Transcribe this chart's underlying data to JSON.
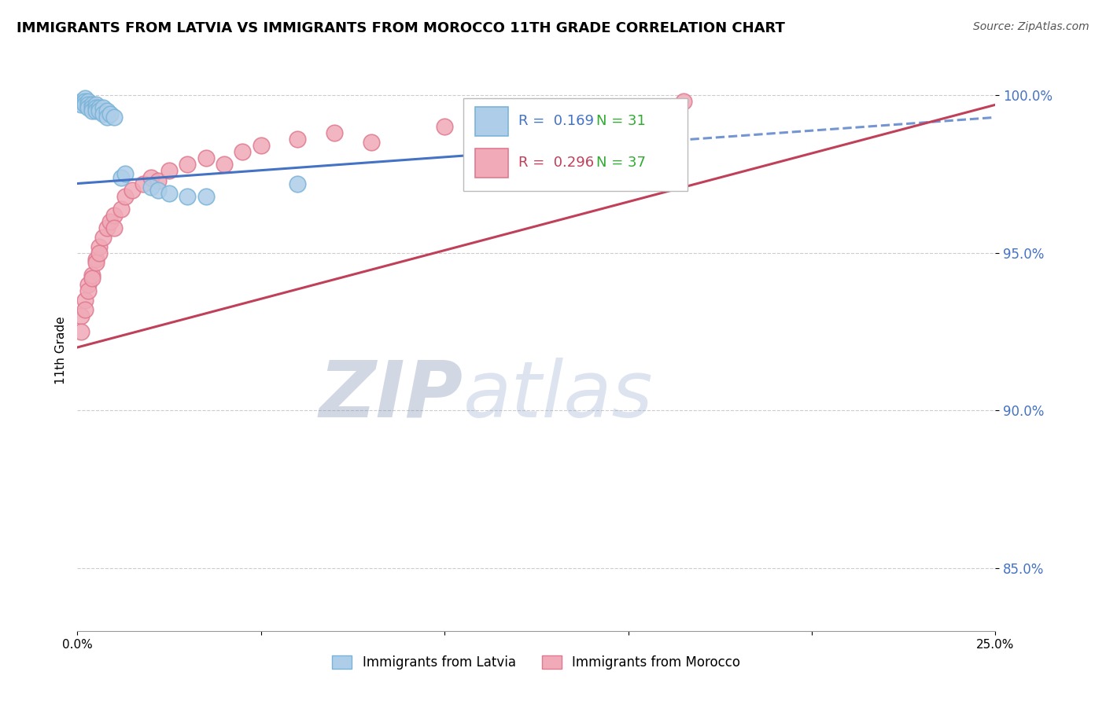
{
  "title": "IMMIGRANTS FROM LATVIA VS IMMIGRANTS FROM MOROCCO 11TH GRADE CORRELATION CHART",
  "source": "Source: ZipAtlas.com",
  "ylabel": "11th Grade",
  "watermark_left": "ZIP",
  "watermark_right": "atlas",
  "series_latvia": {
    "label": "Immigrants from Latvia",
    "color": "#7ab4d8",
    "color_fill": "#aecde8",
    "R": 0.169,
    "N": 31,
    "x": [
      0.001,
      0.001,
      0.002,
      0.002,
      0.002,
      0.003,
      0.003,
      0.003,
      0.004,
      0.004,
      0.004,
      0.005,
      0.005,
      0.005,
      0.006,
      0.006,
      0.007,
      0.007,
      0.008,
      0.008,
      0.009,
      0.01,
      0.012,
      0.013,
      0.02,
      0.022,
      0.025,
      0.03,
      0.035,
      0.06,
      0.115
    ],
    "y": [
      0.998,
      0.997,
      0.999,
      0.998,
      0.997,
      0.998,
      0.997,
      0.996,
      0.997,
      0.996,
      0.995,
      0.997,
      0.996,
      0.995,
      0.996,
      0.995,
      0.996,
      0.994,
      0.995,
      0.993,
      0.994,
      0.993,
      0.974,
      0.975,
      0.971,
      0.97,
      0.969,
      0.968,
      0.968,
      0.972,
      0.983
    ]
  },
  "series_morocco": {
    "label": "Immigrants from Morocco",
    "color": "#e07a90",
    "color_fill": "#f0aab8",
    "R": 0.296,
    "N": 37,
    "x": [
      0.001,
      0.001,
      0.002,
      0.002,
      0.003,
      0.003,
      0.004,
      0.004,
      0.005,
      0.005,
      0.006,
      0.006,
      0.007,
      0.008,
      0.009,
      0.01,
      0.01,
      0.012,
      0.013,
      0.015,
      0.018,
      0.02,
      0.022,
      0.025,
      0.03,
      0.035,
      0.04,
      0.045,
      0.05,
      0.06,
      0.07,
      0.08,
      0.1,
      0.12,
      0.13,
      0.15,
      0.165
    ],
    "y": [
      0.93,
      0.925,
      0.935,
      0.932,
      0.94,
      0.938,
      0.943,
      0.942,
      0.948,
      0.947,
      0.952,
      0.95,
      0.955,
      0.958,
      0.96,
      0.962,
      0.958,
      0.964,
      0.968,
      0.97,
      0.972,
      0.974,
      0.973,
      0.976,
      0.978,
      0.98,
      0.978,
      0.982,
      0.984,
      0.986,
      0.988,
      0.985,
      0.99,
      0.992,
      0.994,
      0.996,
      0.998
    ]
  },
  "xlim": [
    0.0,
    0.25
  ],
  "ylim": [
    0.83,
    1.008
  ],
  "yticks": [
    0.85,
    0.9,
    0.95,
    1.0
  ],
  "ytick_labels": [
    "85.0%",
    "90.0%",
    "95.0%",
    "100.0%"
  ],
  "xticks": [
    0.0,
    0.05,
    0.1,
    0.15,
    0.2,
    0.25
  ],
  "xtick_labels": [
    "0.0%",
    "",
    "",
    "",
    "",
    "25.0%"
  ],
  "grid_color": "#cccccc",
  "background_color": "#ffffff",
  "trend_blue_color": "#4472c4",
  "trend_pink_color": "#c0405a",
  "legend_R_color_blue": "#4472c4",
  "legend_R_color_pink": "#c0405a",
  "legend_N_color": "#33aa33",
  "trend_blue_y0": 0.972,
  "trend_blue_y1": 0.993,
  "trend_pink_y0": 0.92,
  "trend_pink_y1": 0.997,
  "trend_blue_dashed_start": 0.115,
  "trend_blue_dashed_end": 0.25
}
